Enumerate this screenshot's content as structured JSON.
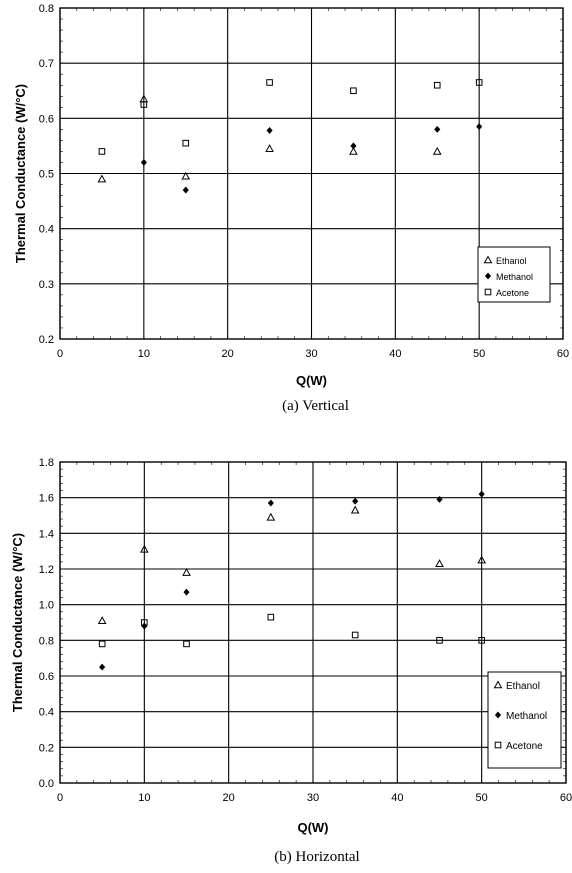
{
  "chart_data": [
    {
      "type": "scatter",
      "caption": "(a) Vertical",
      "xlabel": "Q(W)",
      "ylabel": "Thermal Conductance (W/°C)",
      "xlim": [
        0,
        60
      ],
      "ylim": [
        0.2,
        0.8
      ],
      "xticks": [
        0,
        10,
        20,
        30,
        40,
        50,
        60
      ],
      "yticks": [
        0.2,
        0.3,
        0.4,
        0.5,
        0.6,
        0.7,
        0.8
      ],
      "ytick_labels": [
        "0.2",
        "0.3",
        "0.4",
        "0.5",
        "0.6",
        "0.7",
        "0.8"
      ],
      "grid": true,
      "legend_position": "bottom-right",
      "series": [
        {
          "name": "Ethanol",
          "marker": "triangle",
          "x": [
            5,
            10,
            15,
            25,
            35,
            45
          ],
          "y": [
            0.49,
            0.635,
            0.495,
            0.545,
            0.54,
            0.54
          ]
        },
        {
          "name": "Methanol",
          "marker": "diamond",
          "x": [
            10,
            15,
            25,
            35,
            45,
            50
          ],
          "y": [
            0.52,
            0.47,
            0.578,
            0.55,
            0.58,
            0.585
          ]
        },
        {
          "name": "Acetone",
          "marker": "square",
          "x": [
            5,
            10,
            15,
            25,
            35,
            45,
            50
          ],
          "y": [
            0.54,
            0.625,
            0.555,
            0.665,
            0.65,
            0.66,
            0.665
          ]
        }
      ]
    },
    {
      "type": "scatter",
      "caption": "(b) Horizontal",
      "xlabel": "Q(W)",
      "ylabel": "Thermal Conductance (W/°C)",
      "xlim": [
        0,
        60
      ],
      "ylim": [
        0,
        1.8
      ],
      "xticks": [
        0,
        10,
        20,
        30,
        40,
        50,
        60
      ],
      "yticks": [
        0,
        0.2,
        0.4,
        0.6,
        0.8,
        1.0,
        1.2,
        1.4,
        1.6,
        1.8
      ],
      "ytick_labels": [
        "0.0",
        "0.2",
        "0.4",
        "0.6",
        "0.8",
        "1.0",
        "1.2",
        "1.4",
        "1.6",
        "1.8"
      ],
      "grid": true,
      "legend_position": "bottom-right",
      "series": [
        {
          "name": "Ethanol",
          "marker": "triangle",
          "x": [
            5,
            10,
            15,
            25,
            35,
            45,
            50
          ],
          "y": [
            0.91,
            1.31,
            1.18,
            1.49,
            1.53,
            1.23,
            1.25
          ]
        },
        {
          "name": "Methanol",
          "marker": "diamond",
          "x": [
            5,
            10,
            15,
            25,
            35,
            45,
            50
          ],
          "y": [
            0.65,
            0.88,
            1.07,
            1.57,
            1.58,
            1.59,
            1.62
          ]
        },
        {
          "name": "Acetone",
          "marker": "square",
          "x": [
            5,
            10,
            15,
            25,
            35,
            45,
            50
          ],
          "y": [
            0.78,
            0.9,
            0.78,
            0.93,
            0.83,
            0.8,
            0.8
          ]
        }
      ]
    }
  ]
}
